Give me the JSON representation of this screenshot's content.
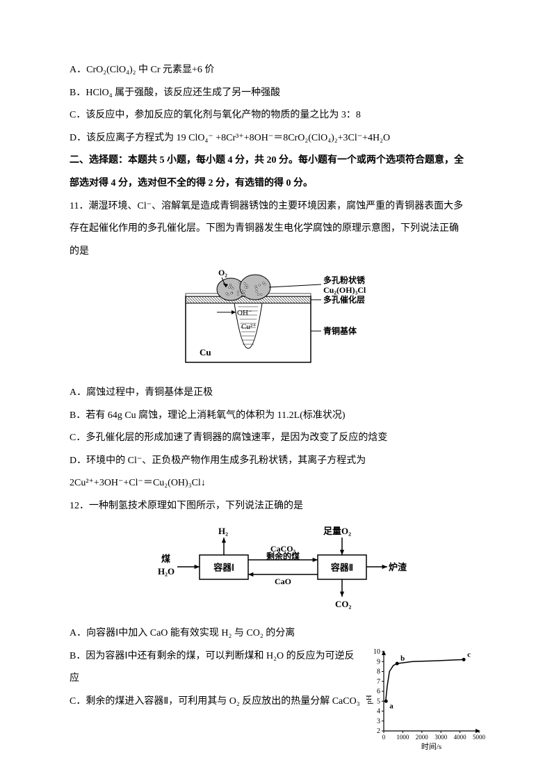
{
  "options_10": {
    "A": "A．CrO₂(ClO₄)₂ 中 Cr 元素显+6 价",
    "B": "B．HClO₄ 属于强酸，该反应还生成了另一种强酸",
    "C": "C．该反应中，参加反应的氧化剂与氧化产物的物质的量之比为 3：8",
    "D": "D．该反应离子方程式为 19 ClO₄⁻ +8Cr³⁺+8OH⁻＝8CrO₂(ClO₄)₂+3Cl⁻+4H₂O"
  },
  "section2": {
    "line1": "二、选择题：本题共 5 小题，每小题 4 分，共 20 分。每小题有一个或两个选项符合题意，全",
    "line2": "部选对得 4 分，选对但不全的得 2 分，有选错的得 0 分。"
  },
  "q11": {
    "line1": "11．潮湿环境、Cl⁻、溶解氧是造成青铜器锈蚀的主要环境因素，腐蚀严重的青铜器表面大多",
    "line2": "存在起催化作用的多孔催化层。下图为青铜器发生电化学腐蚀的原理示意图，下列说法正确",
    "line3": "的是",
    "A": "A．腐蚀过程中，青铜基体是正极",
    "B": "B．若有 64g Cu 腐蚀，理论上消耗氧气的体积为 11.2L(标准状况)",
    "C": "C．多孔催化层的形成加速了青铜器的腐蚀速率，是因为改变了反应的焓变",
    "D1": "D．环境中的 Cl⁻、正负极产物作用生成多孔粉状锈，其离子方程式为",
    "D2": "2Cu²⁺+3OH⁻+Cl⁻＝Cu₂(OH)₃Cl↓"
  },
  "q11_fig": {
    "o2": "O₂",
    "oh": "OH⁻",
    "cu2": "Cu²⁺",
    "cu": "Cu",
    "label1": "多孔粉状锈",
    "label1b": "Cu₂(OH)₃Cl",
    "label2": "多孔催化层",
    "label3": "青铜基体",
    "colors": {
      "stroke": "#000000",
      "hatch": "#666666",
      "rust": "#bbbbbb",
      "body": "#ffffff"
    }
  },
  "q12": {
    "stem": "12．一种制氢技术原理如下图所示，下列说法正确的是",
    "A": "A．向容器Ⅰ中加入 CaO 能有效实现 H₂ 与 CO₂ 的分离",
    "B1": "B．因为容器Ⅰ中还有剩余的煤，可以判断煤和 H₂O 的反应为可逆反",
    "B2": "应",
    "C": "C．剩余的煤进入容器Ⅱ，可利用其与 O₂ 反应放出的热量分解 CaCO₃"
  },
  "q12_fig": {
    "left_in1": "煤",
    "left_in2": "H₂O",
    "box1": "容器Ⅰ",
    "box2": "容器Ⅱ",
    "top1": "H₂",
    "top2": "足量O₂",
    "mid_top": "CaCO₃",
    "mid_mid": "剩余的煤",
    "mid_bot": "CaO",
    "right_out": "炉渣",
    "bottom_out": "CO₂",
    "colors": {
      "stroke": "#000000",
      "fill": "#ffffff"
    }
  },
  "chart": {
    "ylabel": "pH",
    "xlabel": "时间/s",
    "ylim": [
      2,
      10
    ],
    "yticks": [
      2,
      3,
      4,
      5,
      6,
      7,
      8,
      9,
      10
    ],
    "xlim": [
      0,
      5000
    ],
    "xticks": [
      0,
      1000,
      2000,
      3000,
      4000,
      5000
    ],
    "points": {
      "a": {
        "x": 120,
        "y": 5.0,
        "label": "a"
      },
      "b": {
        "x": 700,
        "y": 8.8,
        "label": "b"
      },
      "c": {
        "x": 4200,
        "y": 9.2,
        "label": "c"
      }
    },
    "curve": [
      {
        "x": 100,
        "y": 5.0
      },
      {
        "x": 180,
        "y": 6.5
      },
      {
        "x": 300,
        "y": 8.0
      },
      {
        "x": 500,
        "y": 8.6
      },
      {
        "x": 700,
        "y": 8.8
      },
      {
        "x": 1500,
        "y": 9.0
      },
      {
        "x": 3000,
        "y": 9.1
      },
      {
        "x": 4200,
        "y": 9.2
      }
    ],
    "colors": {
      "axis": "#000000",
      "tick": "#000000",
      "curve": "#000000",
      "point": "#000000",
      "bg": "#ffffff"
    },
    "font_size": 10
  }
}
